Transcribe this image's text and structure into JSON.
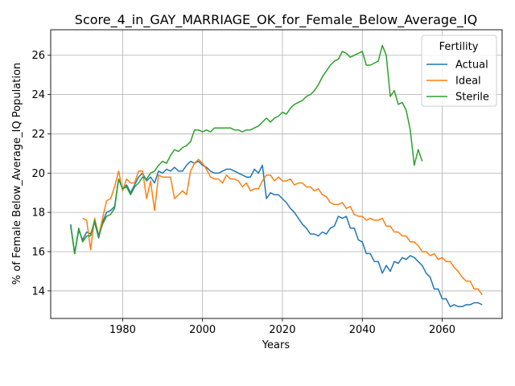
{
  "chart_data": {
    "type": "line",
    "title": "Score_4_in_GAY_MARRIAGE_OK_for_Female_Below_Average_IQ",
    "xlabel": "Years",
    "ylabel": "% of Female Below_Average_IQ Population",
    "xlim": [
      1962,
      2075
    ],
    "ylim": [
      12.6,
      27.3
    ],
    "xticks": [
      1980,
      2000,
      2020,
      2040,
      2060
    ],
    "yticks": [
      14,
      16,
      18,
      20,
      22,
      24,
      26
    ],
    "grid": true,
    "legend": {
      "title": "Fertility",
      "placement": "top-right"
    },
    "series": [
      {
        "name": "Actual",
        "color": "#1f77b4",
        "x": [
          1967,
          1968,
          1969,
          1970,
          1971,
          1972,
          1973,
          1974,
          1975,
          1976,
          1977,
          1978,
          1979,
          1980,
          1981,
          1982,
          1983,
          1984,
          1985,
          1986,
          1987,
          1988,
          1989,
          1990,
          1991,
          1992,
          1993,
          1994,
          1995,
          1996,
          1997,
          1998,
          1999,
          2000,
          2001,
          2002,
          2003,
          2004,
          2005,
          2006,
          2007,
          2008,
          2009,
          2010,
          2011,
          2012,
          2013,
          2014,
          2015,
          2016,
          2017,
          2018,
          2019,
          2020,
          2021,
          2022,
          2023,
          2024,
          2025,
          2026,
          2027,
          2028,
          2029,
          2030,
          2031,
          2032,
          2033,
          2034,
          2035,
          2036,
          2037,
          2038,
          2039,
          2040,
          2041,
          2042,
          2043,
          2044,
          2045,
          2046,
          2047,
          2048,
          2049,
          2050,
          2051,
          2052,
          2053,
          2054,
          2055,
          2056,
          2057,
          2058,
          2059,
          2060,
          2061,
          2062,
          2063,
          2064,
          2065,
          2066,
          2067,
          2068,
          2069,
          2070
        ],
        "y": [
          17.4,
          15.9,
          17.1,
          16.6,
          17.0,
          16.9,
          17.5,
          16.7,
          17.5,
          18.0,
          18.1,
          18.3,
          19.7,
          19.2,
          19.4,
          19.0,
          19.4,
          19.8,
          20.0,
          19.6,
          19.8,
          19.5,
          20.1,
          20.0,
          20.2,
          20.1,
          20.3,
          20.1,
          20.1,
          20.4,
          20.6,
          20.5,
          20.6,
          20.4,
          20.3,
          20.1,
          20.0,
          20.0,
          20.1,
          20.2,
          20.2,
          20.1,
          20.0,
          19.9,
          19.8,
          19.8,
          20.2,
          20.0,
          20.4,
          18.7,
          19.0,
          18.9,
          18.9,
          18.7,
          18.5,
          18.2,
          18.0,
          17.7,
          17.4,
          17.2,
          16.9,
          16.9,
          16.8,
          17.0,
          16.9,
          17.2,
          17.3,
          17.8,
          17.7,
          17.8,
          17.2,
          17.2,
          16.6,
          16.5,
          15.9,
          15.9,
          15.5,
          15.5,
          14.9,
          15.3,
          15.0,
          15.5,
          15.4,
          15.7,
          15.6,
          15.8,
          15.7,
          15.5,
          15.3,
          14.9,
          14.7,
          14.1,
          14.1,
          13.6,
          13.6,
          13.2,
          13.3,
          13.2,
          13.2,
          13.3,
          13.3,
          13.4,
          13.4,
          13.3
        ]
      },
      {
        "name": "Ideal",
        "color": "#ff7f0e",
        "x": [
          1970,
          1971,
          1972,
          1973,
          1974,
          1975,
          1976,
          1977,
          1978,
          1979,
          1980,
          1981,
          1982,
          1983,
          1984,
          1985,
          1986,
          1987,
          1988,
          1989,
          1990,
          1991,
          1992,
          1993,
          1994,
          1995,
          1996,
          1997,
          1998,
          1999,
          2000,
          2001,
          2002,
          2003,
          2004,
          2005,
          2006,
          2007,
          2008,
          2009,
          2010,
          2011,
          2012,
          2013,
          2014,
          2015,
          2016,
          2017,
          2018,
          2019,
          2020,
          2021,
          2022,
          2023,
          2024,
          2025,
          2026,
          2027,
          2028,
          2029,
          2030,
          2031,
          2032,
          2033,
          2034,
          2035,
          2036,
          2037,
          2038,
          2039,
          2040,
          2041,
          2042,
          2043,
          2044,
          2045,
          2046,
          2047,
          2048,
          2049,
          2050,
          2051,
          2052,
          2053,
          2054,
          2055,
          2056,
          2057,
          2058,
          2059,
          2060,
          2061,
          2062,
          2063,
          2064,
          2065,
          2066,
          2067,
          2068,
          2069,
          2070
        ],
        "y": [
          17.7,
          17.6,
          16.1,
          17.7,
          16.8,
          17.7,
          18.6,
          18.7,
          19.3,
          20.1,
          19.1,
          19.7,
          19.5,
          19.5,
          20.1,
          20.1,
          18.7,
          19.6,
          18.1,
          19.9,
          19.8,
          19.8,
          19.8,
          18.7,
          18.9,
          19.1,
          18.9,
          20.1,
          20.5,
          20.7,
          20.5,
          20.2,
          19.8,
          19.7,
          19.7,
          19.5,
          19.9,
          19.7,
          19.7,
          19.6,
          19.3,
          19.5,
          19.1,
          19.2,
          19.2,
          19.6,
          19.9,
          19.9,
          19.6,
          19.8,
          19.6,
          19.6,
          19.7,
          19.4,
          19.5,
          19.5,
          19.3,
          19.3,
          19.1,
          19.2,
          18.9,
          18.8,
          18.5,
          18.4,
          18.4,
          18.5,
          18.2,
          18.3,
          17.9,
          17.8,
          17.8,
          17.6,
          17.7,
          17.6,
          17.6,
          17.7,
          17.3,
          17.3,
          17.0,
          17.0,
          16.8,
          16.8,
          16.5,
          16.5,
          16.3,
          16.0,
          16.0,
          15.8,
          15.9,
          15.6,
          15.7,
          15.5,
          15.5,
          15.2,
          15.0,
          14.7,
          14.5,
          14.5,
          14.1,
          14.1,
          13.8
        ]
      },
      {
        "name": "Sterile",
        "color": "#2ca02c",
        "x": [
          1967,
          1968,
          1969,
          1970,
          1971,
          1972,
          1973,
          1974,
          1975,
          1976,
          1977,
          1978,
          1979,
          1980,
          1981,
          1982,
          1983,
          1984,
          1985,
          1986,
          1987,
          1988,
          1989,
          1990,
          1991,
          1992,
          1993,
          1994,
          1995,
          1996,
          1997,
          1998,
          1999,
          2000,
          2001,
          2002,
          2003,
          2004,
          2005,
          2006,
          2007,
          2008,
          2009,
          2010,
          2011,
          2012,
          2013,
          2014,
          2015,
          2016,
          2017,
          2018,
          2019,
          2020,
          2021,
          2022,
          2023,
          2024,
          2025,
          2026,
          2027,
          2028,
          2029,
          2030,
          2031,
          2032,
          2033,
          2034,
          2035,
          2036,
          2037,
          2038,
          2039,
          2040,
          2041,
          2042,
          2043,
          2044,
          2045,
          2046,
          2047,
          2048,
          2049,
          2050,
          2051,
          2052,
          2053,
          2054,
          2055
        ],
        "y": [
          17.3,
          15.9,
          17.2,
          16.5,
          16.8,
          16.8,
          17.6,
          16.8,
          17.4,
          17.8,
          17.9,
          18.2,
          19.7,
          19.2,
          19.3,
          18.9,
          19.3,
          19.5,
          19.8,
          19.7,
          20.0,
          20.1,
          20.4,
          20.6,
          20.5,
          20.9,
          21.2,
          21.1,
          21.3,
          21.4,
          21.6,
          22.2,
          22.2,
          22.1,
          22.2,
          22.1,
          22.3,
          22.3,
          22.3,
          22.3,
          22.3,
          22.2,
          22.2,
          22.1,
          22.2,
          22.2,
          22.3,
          22.4,
          22.6,
          22.8,
          22.6,
          22.8,
          22.9,
          23.1,
          23.0,
          23.3,
          23.5,
          23.6,
          23.7,
          23.9,
          24.0,
          24.2,
          24.5,
          24.9,
          25.2,
          25.5,
          25.7,
          25.8,
          26.2,
          26.1,
          25.9,
          26.0,
          26.1,
          26.2,
          25.5,
          25.5,
          25.6,
          25.7,
          26.5,
          26.0,
          23.9,
          24.2,
          23.5,
          23.6,
          23.2,
          22.2,
          20.4,
          21.2,
          20.6
        ]
      }
    ]
  }
}
